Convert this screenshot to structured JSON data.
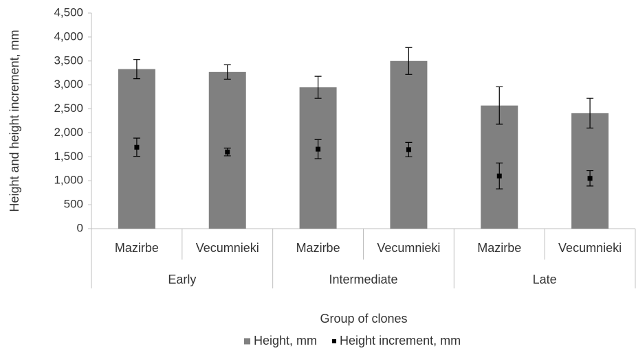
{
  "chart_data": {
    "type": "bar",
    "y_label": "Height and height increment, mm",
    "x_label": "Group of clones",
    "groups": [
      {
        "label": "Early",
        "categories": [
          "Mazirbe",
          "Vecumnieki"
        ]
      },
      {
        "label": "Intermediate",
        "categories": [
          "Mazirbe",
          "Vecumnieki"
        ]
      },
      {
        "label": "Late",
        "categories": [
          "Mazirbe",
          "Vecumnieki"
        ]
      }
    ],
    "series": [
      {
        "name": "Height, mm",
        "kind": "bar",
        "color": "#808080",
        "values": [
          3330,
          3270,
          2950,
          3500,
          2570,
          2410
        ],
        "errors": [
          200,
          150,
          230,
          280,
          390,
          310
        ]
      },
      {
        "name": "Height increment, mm",
        "kind": "point",
        "color": "#000000",
        "values": [
          1700,
          1600,
          1660,
          1650,
          1100,
          1050
        ],
        "errors": [
          190,
          80,
          200,
          150,
          270,
          160
        ]
      }
    ],
    "ylim": [
      0,
      4500
    ],
    "yticks": [
      0,
      500,
      {
        "value": 1000,
        "label": "1,000"
      },
      {
        "value": 1500,
        "label": "1,500"
      },
      {
        "value": 2000,
        "label": "2,000"
      },
      {
        "value": 2500,
        "label": "2,500"
      },
      {
        "value": 3000,
        "label": "3,000"
      },
      {
        "value": 3500,
        "label": "3,500"
      },
      {
        "value": 4000,
        "label": "4,000"
      },
      {
        "value": 4500,
        "label": "4,500"
      }
    ],
    "legend": "bottom"
  }
}
